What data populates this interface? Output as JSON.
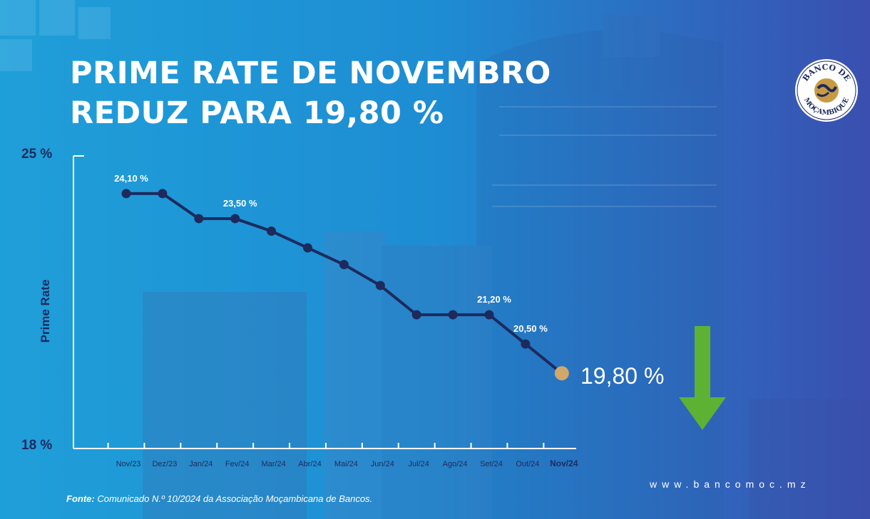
{
  "header": {
    "title_line1": "PRIME RATE DE NOVEMBRO",
    "title_line2": "REDUZ PARA 19,80 %"
  },
  "logo": {
    "text_top": "BANCO DE",
    "text_bottom": "MOÇAMBIQUE"
  },
  "highlight": {
    "value": "19,80 %",
    "arrow_color": "#5db233"
  },
  "footer": {
    "source_label": "Fonte:",
    "source_text": "Comunicado N.º 10/2024 da Associação Moçambicana de Bancos.",
    "website": "www.bancomoc.mz"
  },
  "colors": {
    "line": "#1d2a5e",
    "marker": "#1d2a5e",
    "last_marker": "#d3a76a",
    "axis": "#ffffff"
  },
  "chart_data": {
    "type": "line",
    "title": "PRIME RATE DE NOVEMBRO REDUZ PARA 19,80 %",
    "xlabel": "",
    "ylabel": "Prime Rate",
    "ylim": [
      18,
      25
    ],
    "y_tick_labels": [
      "25 %",
      "18 %"
    ],
    "categories": [
      "Nov/23",
      "Dez/23",
      "Jan/24",
      "Fev/24",
      "Mar/24",
      "Abr/24",
      "Mai/24",
      "Jun/24",
      "Jul/24",
      "Ago/24",
      "Set/24",
      "Out/24",
      "Nov/24"
    ],
    "values": [
      24.1,
      24.1,
      23.5,
      23.5,
      23.2,
      22.8,
      22.4,
      21.9,
      21.2,
      21.2,
      21.2,
      20.5,
      19.8
    ],
    "data_labels": [
      {
        "index": 0,
        "text": "24,10 %"
      },
      {
        "index": 3,
        "text": "23,50 %"
      },
      {
        "index": 10,
        "text": "21,20 %"
      },
      {
        "index": 11,
        "text": "20,50 %"
      }
    ],
    "grid": false
  }
}
